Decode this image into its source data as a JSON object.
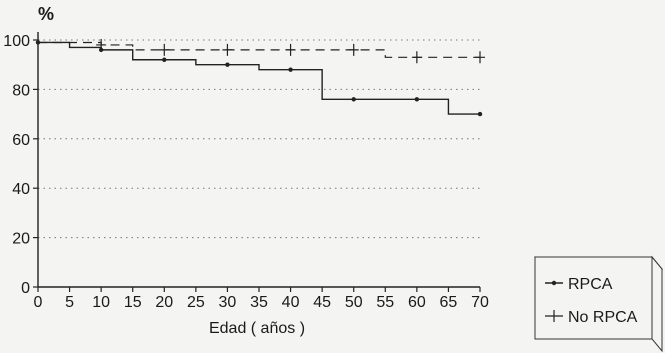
{
  "chart_data": {
    "type": "line",
    "ylabel": "%",
    "xlabel": "Edad ( años )",
    "xlim": [
      0,
      70
    ],
    "ylim": [
      0,
      100
    ],
    "x_ticks": [
      0,
      5,
      10,
      15,
      20,
      25,
      30,
      35,
      40,
      45,
      50,
      55,
      60,
      65,
      70
    ],
    "y_ticks": [
      0,
      20,
      40,
      60,
      80,
      100
    ],
    "grid": "horizontal dotted",
    "legend_position": "bottom-right",
    "series": [
      {
        "name": "RPCA",
        "style": "solid, step, circle markers",
        "x": [
          0,
          5,
          10,
          15,
          20,
          25,
          30,
          35,
          40,
          45,
          50,
          55,
          60,
          65,
          70
        ],
        "y": [
          99,
          97,
          96,
          92,
          92,
          90,
          90,
          88,
          88,
          76,
          76,
          76,
          76,
          70,
          70
        ],
        "markers_x": [
          0,
          10,
          20,
          30,
          40,
          50,
          60,
          70
        ],
        "markers_y": [
          99,
          96,
          92,
          90,
          88,
          76,
          76,
          70
        ]
      },
      {
        "name": "No RPCA",
        "style": "dashed, step, plus markers",
        "x": [
          0,
          10,
          15,
          20,
          30,
          40,
          50,
          55,
          60,
          70
        ],
        "y": [
          99,
          98,
          96,
          96,
          96,
          96,
          96,
          93,
          93,
          93
        ],
        "markers_x": [
          10,
          20,
          30,
          40,
          50,
          60,
          70
        ],
        "markers_y": [
          98,
          96,
          96,
          96,
          96,
          93,
          93
        ]
      }
    ]
  }
}
